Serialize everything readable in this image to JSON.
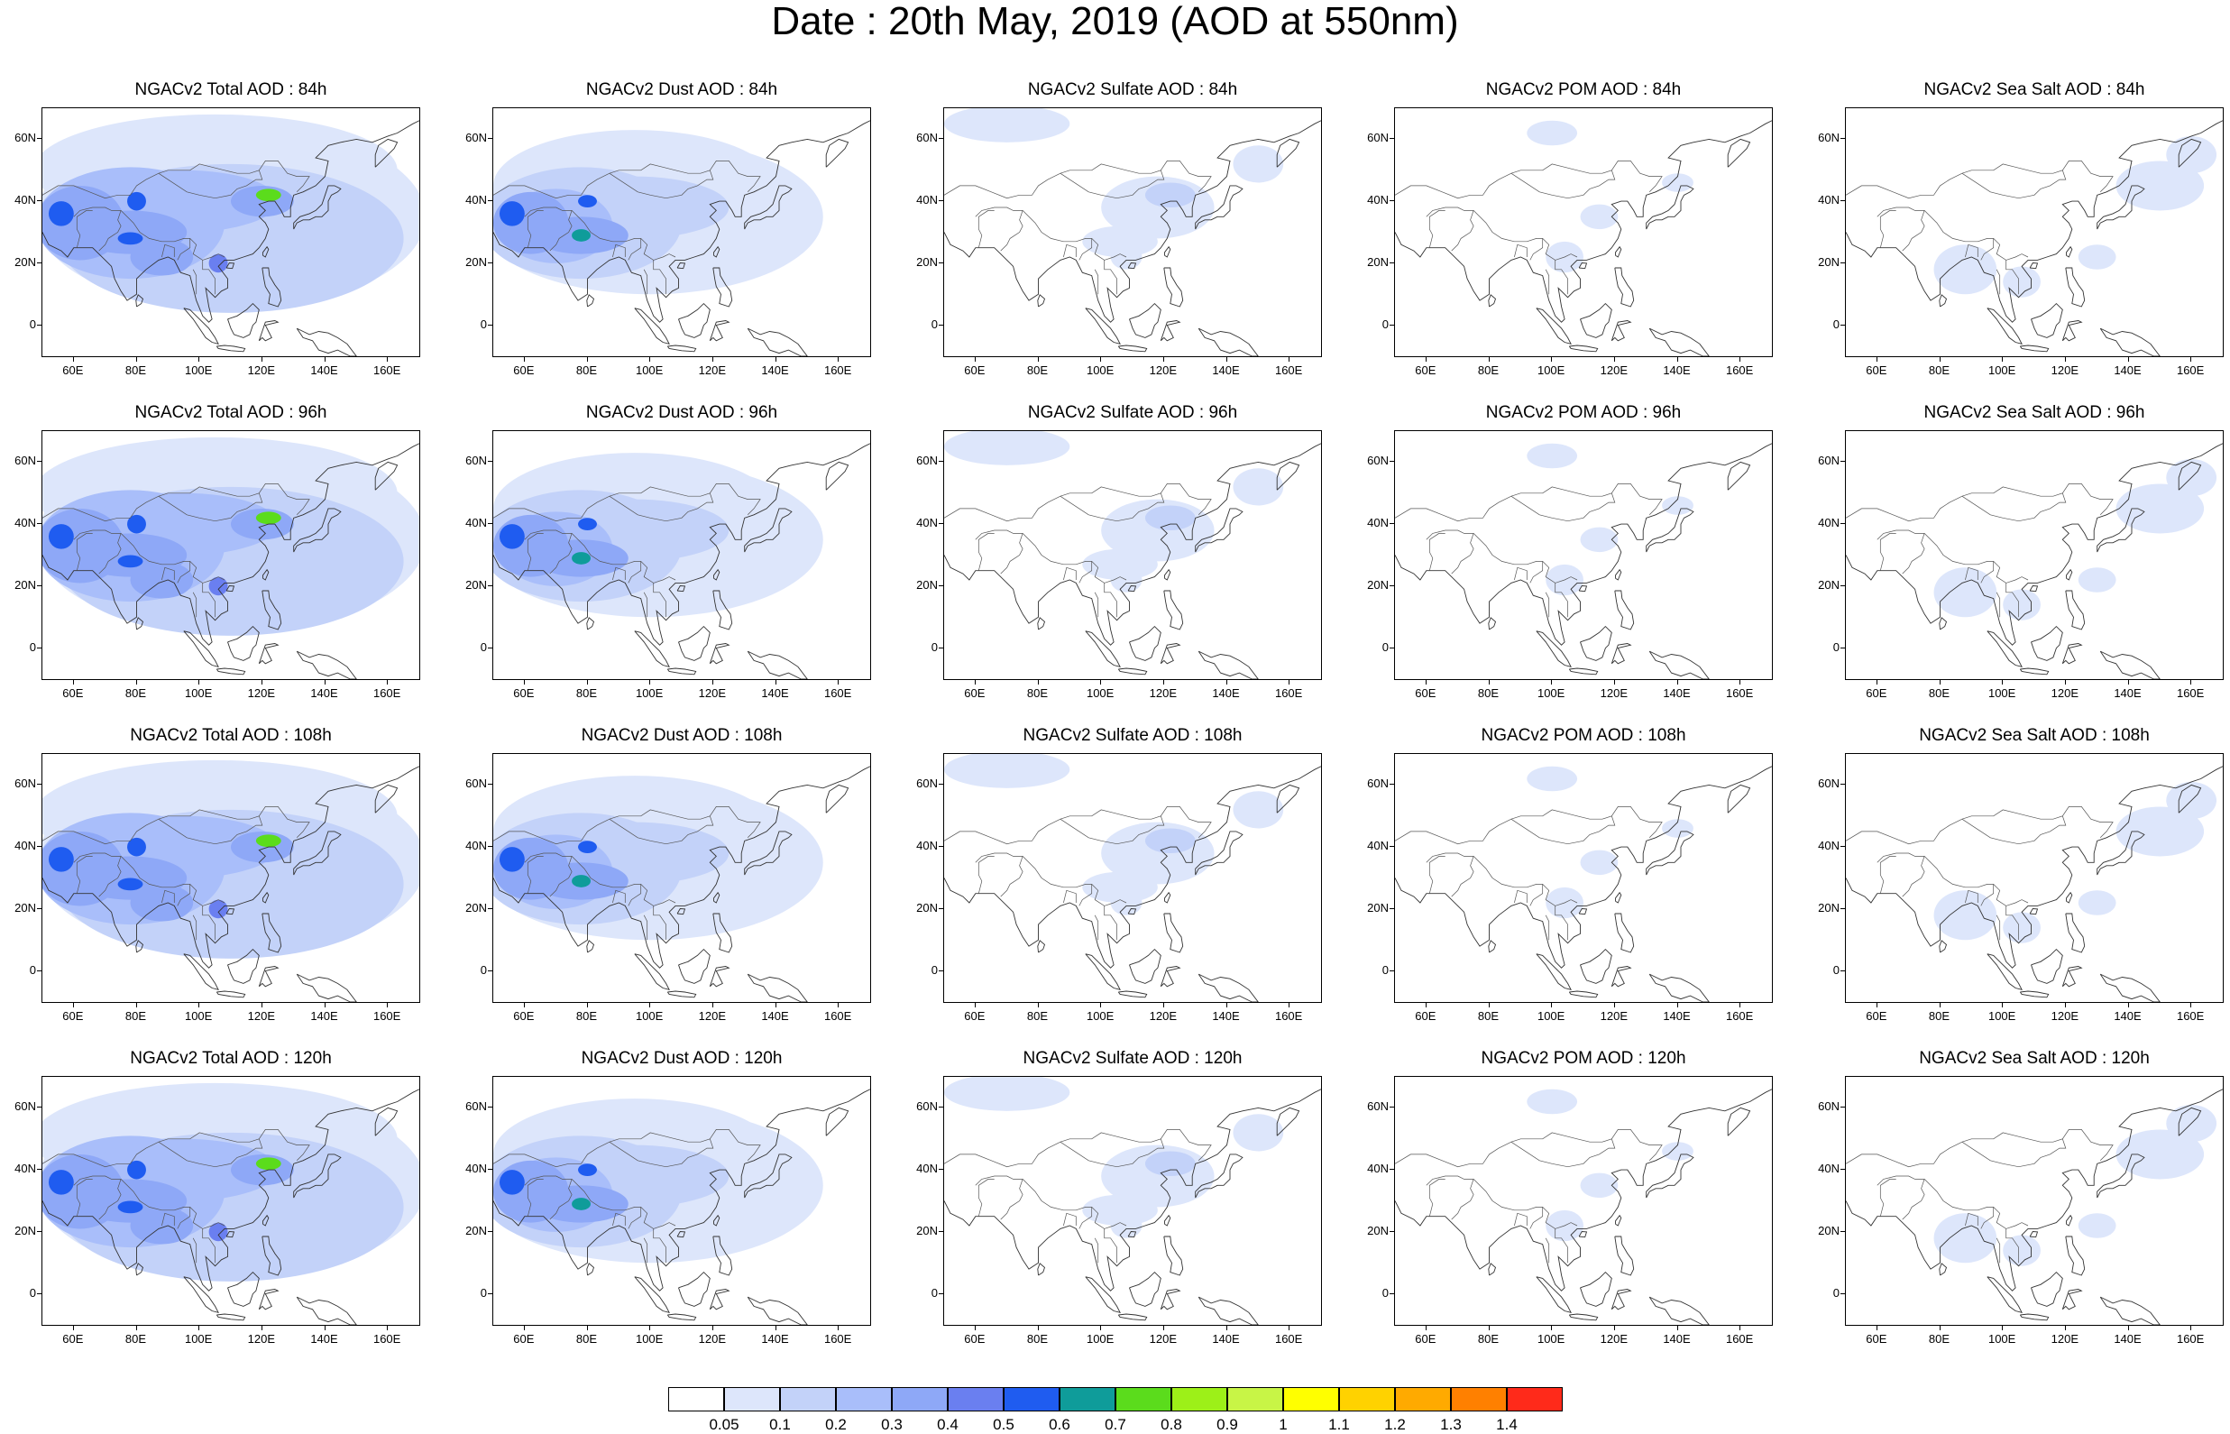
{
  "title": "Date : 20th May, 2019 (AOD at 550nm)",
  "panels": [
    {
      "title": "NGACv2 Total AOD : 84h",
      "species": "total"
    },
    {
      "title": "NGACv2 Dust AOD : 84h",
      "species": "dust"
    },
    {
      "title": "NGACv2 Sulfate AOD : 84h",
      "species": "sulfate"
    },
    {
      "title": "NGACv2 POM AOD : 84h",
      "species": "pom"
    },
    {
      "title": "NGACv2 Sea Salt AOD : 84h",
      "species": "seasalt"
    },
    {
      "title": "NGACv2 Total AOD : 96h",
      "species": "total"
    },
    {
      "title": "NGACv2 Dust AOD : 96h",
      "species": "dust"
    },
    {
      "title": "NGACv2 Sulfate AOD : 96h",
      "species": "sulfate"
    },
    {
      "title": "NGACv2 POM AOD : 96h",
      "species": "pom"
    },
    {
      "title": "NGACv2 Sea Salt AOD : 96h",
      "species": "seasalt"
    },
    {
      "title": "NGACv2 Total AOD : 108h",
      "species": "total"
    },
    {
      "title": "NGACv2 Dust AOD : 108h",
      "species": "dust"
    },
    {
      "title": "NGACv2 Sulfate AOD : 108h",
      "species": "sulfate"
    },
    {
      "title": "NGACv2 POM AOD : 108h",
      "species": "pom"
    },
    {
      "title": "NGACv2 Sea Salt AOD : 108h",
      "species": "seasalt"
    },
    {
      "title": "NGACv2 Total AOD : 120h",
      "species": "total"
    },
    {
      "title": "NGACv2 Dust AOD : 120h",
      "species": "dust"
    },
    {
      "title": "NGACv2 Sulfate AOD : 120h",
      "species": "sulfate"
    },
    {
      "title": "NGACv2 POM AOD : 120h",
      "species": "pom"
    },
    {
      "title": "NGACv2 Sea Salt  AOD : 120h",
      "species": "seasalt"
    }
  ],
  "lat_ticks": [
    "60N",
    "40N",
    "20N",
    "0"
  ],
  "lon_ticks": [
    "60E",
    "80E",
    "100E",
    "120E",
    "140E",
    "160E"
  ],
  "colorbar": {
    "colors": [
      "#ffffff",
      "#dde6fb",
      "#c3d2f9",
      "#a9befa",
      "#8ea8f7",
      "#6a7ff0",
      "#1f5cf0",
      "#0f9c9a",
      "#5bdc1c",
      "#9df018",
      "#c8f546",
      "#ffff00",
      "#ffd200",
      "#ffaa00",
      "#ff8000",
      "#ff2a1a"
    ],
    "labels": [
      "0.05",
      "0.1",
      "0.2",
      "0.3",
      "0.4",
      "0.5",
      "0.6",
      "0.7",
      "0.8",
      "0.9",
      "1",
      "1.1",
      "1.2",
      "1.3",
      "1.4"
    ]
  }
}
